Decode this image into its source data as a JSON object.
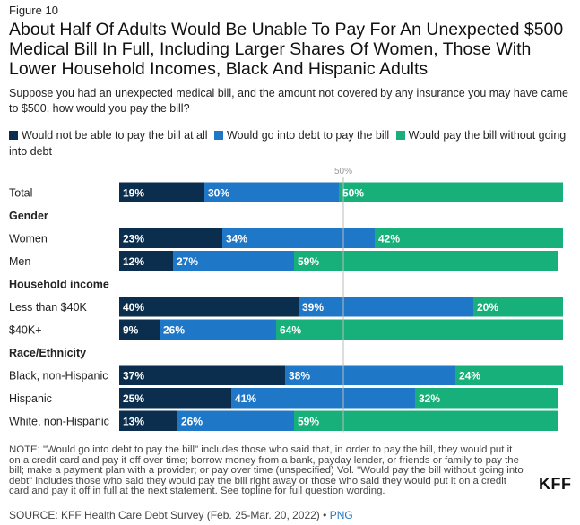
{
  "figure_label": "Figure 10",
  "title": "About Half Of Adults Would Be Unable To Pay For An Unexpected $500 Medical Bill In Full, Including Larger Shares Of Women, Those With Lower Household Incomes, Black And Hispanic Adults",
  "subtitle": "Suppose you had an unexpected medical bill, and the amount not covered by any insurance you may have came to $500, how would you pay the bill?",
  "note": "NOTE: \"Would go into debt to pay the bill\" includes those who said that, in order to pay the bill, they would put it on a credit card and pay it off over time; borrow money from a bank, payday lender, or friends or family to pay the bill; make a payment plan with a provider; or pay over time (unspecified) Vol. \"Would pay the bill without going into debt\" includes those who said they would pay the bill right away or those who said they would put it on a credit card and pay it off in full at the next statement. See topline for full question wording.",
  "source": "SOURCE: KFF Health Care Debt Survey (Feb. 25-Mar. 20, 2022) •",
  "png_link": "PNG",
  "logo": "KFF",
  "colors": {
    "not_able": "#0b2d4e",
    "debt": "#1f77c7",
    "no_debt": "#17b07a",
    "reference_line": "#bbbbbb"
  },
  "chart_data": {
    "type": "bar",
    "orientation": "horizontal",
    "stacked": true,
    "title": "About Half Of Adults Would Be Unable To Pay For An Unexpected $500 Medical Bill In Full, Including Larger Shares Of Women, Those With Lower Household Incomes, Black And Hispanic Adults",
    "xlim": [
      0,
      100
    ],
    "reference_line": {
      "value": 50,
      "label": "50%"
    },
    "legend_position": "top",
    "series": [
      {
        "name": "Would not be able to pay the bill at all",
        "color": "#0b2d4e",
        "text_color": "#ffffff"
      },
      {
        "name": "Would go into debt to pay the bill",
        "color": "#1f77c7",
        "text_color": "#ffffff"
      },
      {
        "name": "Would pay the bill without going into debt",
        "color": "#17b07a",
        "text_color": "#ffffff"
      }
    ],
    "rows": [
      {
        "kind": "bar",
        "label": "Total",
        "values": [
          19,
          30,
          50
        ]
      },
      {
        "kind": "header",
        "label": "Gender"
      },
      {
        "kind": "bar",
        "label": "Women",
        "values": [
          23,
          34,
          42
        ]
      },
      {
        "kind": "bar",
        "label": "Men",
        "values": [
          12,
          27,
          59
        ]
      },
      {
        "kind": "header",
        "label": "Household income"
      },
      {
        "kind": "bar",
        "label": "Less than $40K",
        "values": [
          40,
          39,
          20
        ]
      },
      {
        "kind": "bar",
        "label": "$40K+",
        "values": [
          9,
          26,
          64
        ]
      },
      {
        "kind": "header",
        "label": "Race/Ethnicity"
      },
      {
        "kind": "bar",
        "label": "Black, non-Hispanic",
        "values": [
          37,
          38,
          24
        ]
      },
      {
        "kind": "bar",
        "label": "Hispanic",
        "values": [
          25,
          41,
          32
        ]
      },
      {
        "kind": "bar",
        "label": "White, non-Hispanic",
        "values": [
          13,
          26,
          59
        ]
      }
    ]
  }
}
